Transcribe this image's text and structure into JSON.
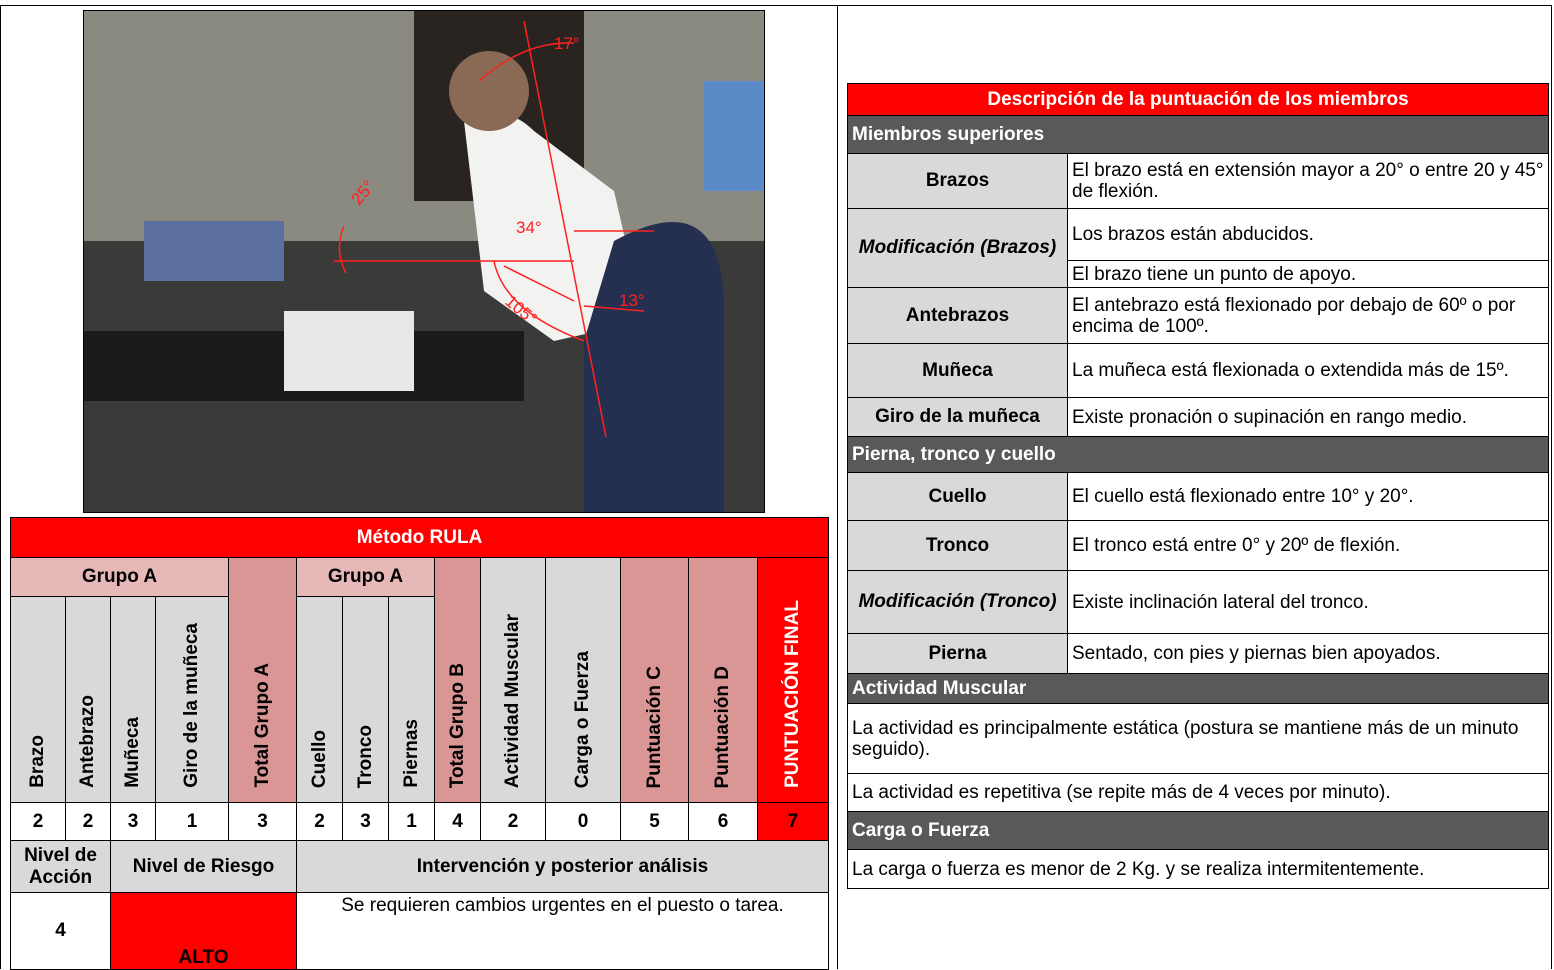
{
  "photo": {
    "angle_labels": [
      "17°",
      "25°",
      "34°",
      "105°",
      "13°"
    ]
  },
  "rula": {
    "title": "Método RULA",
    "group_headers": [
      "Grupo A",
      "Grupo A"
    ],
    "columns": [
      "Brazo",
      "Antebrazo",
      "Muñeca",
      "Giro de la muñeca",
      "Total Grupo A",
      "Cuello",
      "Tronco",
      "Piernas",
      "Total Grupo B",
      "Actividad Muscular",
      "Carga o Fuerza",
      "Puntuación C",
      "Puntuación D",
      "PUNTUACIÓN FINAL"
    ],
    "scores": [
      2,
      2,
      3,
      1,
      3,
      2,
      3,
      1,
      4,
      2,
      0,
      5,
      6,
      7
    ],
    "summary_headers": [
      "Nivel de Acción",
      "Nivel de Riesgo",
      "Intervención y posterior análisis"
    ],
    "summary_values": [
      "4",
      "ALTO",
      "Se requieren cambios urgentes en el puesto o tarea."
    ]
  },
  "description": {
    "title": "Descripción de la puntuación de los miembros",
    "sections": [
      {
        "title": "Miembros superiores",
        "rows": [
          {
            "label": "Brazos",
            "texts": [
              "El brazo está en extensión mayor a 20° o entre 20 y 45° de flexión."
            ]
          },
          {
            "label": "Modificación (Brazos)",
            "texts": [
              "Los brazos están abducidos.",
              "El brazo tiene un punto de apoyo."
            ]
          },
          {
            "label": "Antebrazos",
            "texts": [
              "El antebrazo está flexionado por debajo de 60º o por encima de 100º."
            ]
          },
          {
            "label": "Muñeca",
            "texts": [
              "La muñeca está flexionada o extendida más de 15º."
            ]
          },
          {
            "label": "Giro de la muñeca",
            "texts": [
              "Existe pronación o supinación en rango medio."
            ]
          }
        ]
      },
      {
        "title": "Pierna, tronco y cuello",
        "rows": [
          {
            "label": "Cuello",
            "texts": [
              "El cuello está flexionado entre 10° y 20°."
            ]
          },
          {
            "label": "Tronco",
            "texts": [
              "El tronco está entre 0° y 20º de flexión."
            ]
          },
          {
            "label": "Modificación (Tronco)",
            "texts": [
              "Existe inclinación lateral del tronco."
            ]
          },
          {
            "label": "Pierna",
            "texts": [
              "Sentado, con pies y piernas bien apoyados."
            ]
          }
        ]
      },
      {
        "title": "Actividad Muscular",
        "rows": [
          {
            "texts": [
              "La actividad es principalmente estática (postura se mantiene más de un minuto seguido)."
            ]
          },
          {
            "texts": [
              "La actividad es repetitiva (se repite más de 4 veces por minuto)."
            ]
          }
        ]
      },
      {
        "title": "Carga o Fuerza",
        "rows": [
          {
            "texts": [
              "La carga o fuerza es menor de 2 Kg. y se realiza intermitentemente."
            ]
          }
        ]
      }
    ]
  }
}
